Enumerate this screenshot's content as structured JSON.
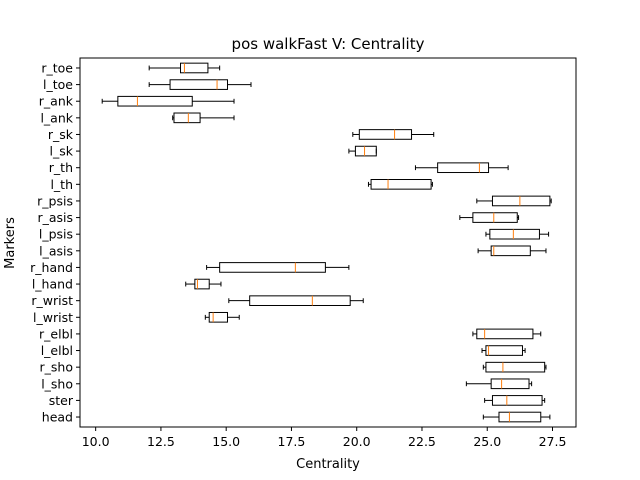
{
  "chart_data": {
    "type": "boxplot",
    "orientation": "horizontal",
    "title": "pos walkFast V: Centrality",
    "xlabel": "Centrality",
    "ylabel": "Markers",
    "xlim": [
      9.4,
      28.4
    ],
    "xticks": [
      "10.0",
      "12.5",
      "15.0",
      "17.5",
      "20.0",
      "22.5",
      "25.0",
      "27.5"
    ],
    "xtick_values": [
      10.0,
      12.5,
      15.0,
      17.5,
      20.0,
      22.5,
      25.0,
      27.5
    ],
    "grid": false,
    "colors": {
      "box": "#000000",
      "median": "#ff7f0e"
    },
    "categories": [
      "head",
      "ster",
      "l_sho",
      "r_sho",
      "l_elbl",
      "r_elbl",
      "l_wrist",
      "r_wrist",
      "l_hand",
      "r_hand",
      "l_asis",
      "l_psis",
      "r_asis",
      "r_psis",
      "l_th",
      "r_th",
      "l_sk",
      "r_sk",
      "l_ank",
      "r_ank",
      "l_toe",
      "r_toe"
    ],
    "boxes": [
      {
        "label": "head",
        "whislo": 24.85,
        "q1": 25.45,
        "med": 25.85,
        "q3": 27.05,
        "whishi": 27.4
      },
      {
        "label": "ster",
        "whislo": 24.9,
        "q1": 25.2,
        "med": 25.75,
        "q3": 27.1,
        "whishi": 27.2
      },
      {
        "label": "l_sho",
        "whislo": 24.2,
        "q1": 25.15,
        "med": 25.55,
        "q3": 26.6,
        "whishi": 26.7
      },
      {
        "label": "r_sho",
        "whislo": 24.85,
        "q1": 24.95,
        "med": 25.6,
        "q3": 27.2,
        "whishi": 27.25
      },
      {
        "label": "l_elbl",
        "whislo": 24.8,
        "q1": 24.95,
        "med": 25.05,
        "q3": 26.35,
        "whishi": 26.45
      },
      {
        "label": "r_elbl",
        "whislo": 24.45,
        "q1": 24.6,
        "med": 24.9,
        "q3": 26.75,
        "whishi": 27.05
      },
      {
        "label": "l_wrist",
        "whislo": 14.2,
        "q1": 14.35,
        "med": 14.5,
        "q3": 15.05,
        "whishi": 15.5
      },
      {
        "label": "r_wrist",
        "whislo": 15.1,
        "q1": 15.9,
        "med": 18.3,
        "q3": 19.75,
        "whishi": 20.25
      },
      {
        "label": "l_hand",
        "whislo": 13.45,
        "q1": 13.8,
        "med": 13.9,
        "q3": 14.35,
        "whishi": 14.8
      },
      {
        "label": "r_hand",
        "whislo": 14.25,
        "q1": 14.75,
        "med": 17.65,
        "q3": 18.8,
        "whishi": 19.7
      },
      {
        "label": "l_asis",
        "whislo": 24.65,
        "q1": 25.15,
        "med": 25.25,
        "q3": 26.65,
        "whishi": 27.25
      },
      {
        "label": "l_psis",
        "whislo": 24.95,
        "q1": 25.1,
        "med": 26.0,
        "q3": 27.0,
        "whishi": 27.35
      },
      {
        "label": "r_asis",
        "whislo": 23.95,
        "q1": 24.45,
        "med": 25.25,
        "q3": 26.15,
        "whishi": 26.2
      },
      {
        "label": "r_psis",
        "whislo": 24.6,
        "q1": 25.2,
        "med": 26.25,
        "q3": 27.4,
        "whishi": 27.45
      },
      {
        "label": "l_th",
        "whislo": 20.45,
        "q1": 20.55,
        "med": 21.2,
        "q3": 22.85,
        "whishi": 22.9
      },
      {
        "label": "r_th",
        "whislo": 22.25,
        "q1": 23.1,
        "med": 24.7,
        "q3": 25.05,
        "whishi": 25.8
      },
      {
        "label": "l_sk",
        "whislo": 19.7,
        "q1": 19.95,
        "med": 20.3,
        "q3": 20.75,
        "whishi": 20.75
      },
      {
        "label": "r_sk",
        "whislo": 19.85,
        "q1": 20.1,
        "med": 21.45,
        "q3": 22.1,
        "whishi": 22.95
      },
      {
        "label": "l_ank",
        "whislo": 12.95,
        "q1": 13.0,
        "med": 13.55,
        "q3": 14.0,
        "whishi": 15.3
      },
      {
        "label": "r_ank",
        "whislo": 10.25,
        "q1": 10.85,
        "med": 11.6,
        "q3": 13.7,
        "whishi": 15.3
      },
      {
        "label": "l_toe",
        "whislo": 12.05,
        "q1": 12.85,
        "med": 14.65,
        "q3": 15.05,
        "whishi": 15.95
      },
      {
        "label": "r_toe",
        "whislo": 12.05,
        "q1": 13.25,
        "med": 13.4,
        "q3": 14.3,
        "whishi": 14.75
      }
    ]
  }
}
